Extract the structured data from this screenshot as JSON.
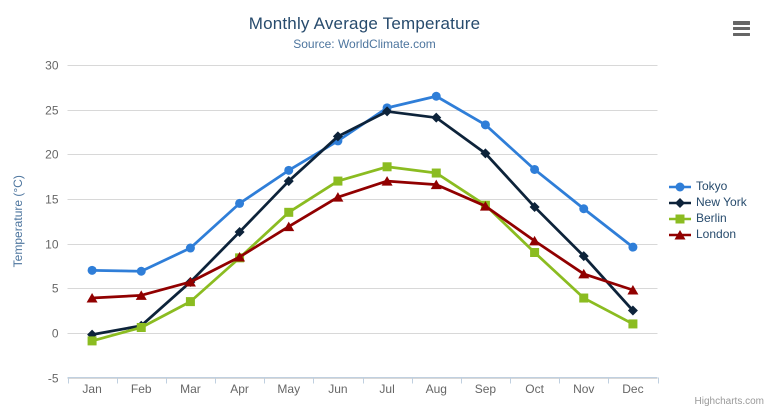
{
  "header": {
    "title": "Monthly Average Temperature",
    "subtitle": "Source: WorldClimate.com"
  },
  "credit": {
    "label": "Highcharts.com"
  },
  "export_menu": {
    "icon": "hamburger-icon"
  },
  "chart_data": {
    "type": "line",
    "title": "Monthly Average Temperature",
    "subtitle": "Source: WorldClimate.com",
    "categories": [
      "Jan",
      "Feb",
      "Mar",
      "Apr",
      "May",
      "Jun",
      "Jul",
      "Aug",
      "Sep",
      "Oct",
      "Nov",
      "Dec"
    ],
    "series": [
      {
        "name": "Tokyo",
        "color": "#2f7ed8",
        "marker": "circle",
        "values": [
          7.0,
          6.9,
          9.5,
          14.5,
          18.2,
          21.5,
          25.2,
          26.5,
          23.3,
          18.3,
          13.9,
          9.6
        ]
      },
      {
        "name": "New York",
        "color": "#0d233a",
        "marker": "diamond",
        "values": [
          -0.2,
          0.8,
          5.7,
          11.3,
          17.0,
          22.0,
          24.8,
          24.1,
          20.1,
          14.1,
          8.6,
          2.5
        ]
      },
      {
        "name": "Berlin",
        "color": "#8bbc21",
        "marker": "square",
        "values": [
          -0.9,
          0.6,
          3.5,
          8.4,
          13.5,
          17.0,
          18.6,
          17.9,
          14.3,
          9.0,
          3.9,
          1.0
        ]
      },
      {
        "name": "London",
        "color": "#910000",
        "marker": "triangle",
        "values": [
          3.9,
          4.2,
          5.7,
          8.5,
          11.9,
          15.2,
          17.0,
          16.6,
          14.2,
          10.3,
          6.6,
          4.8
        ]
      }
    ],
    "xlabel": "",
    "ylabel": "Temperature (°C)",
    "ylim": [
      -5,
      30
    ],
    "ytick_step": 5,
    "grid": true,
    "legend_position": "right",
    "colors": {
      "grid_line": "#d8d8d8",
      "axis_line": "#c0d0e0",
      "axis_label": "#666666",
      "axis_title": "#4d759e",
      "title": "#274b6d",
      "subtitle": "#4d759e",
      "legend_text": "#274b6d",
      "credit_text": "#999999"
    }
  }
}
